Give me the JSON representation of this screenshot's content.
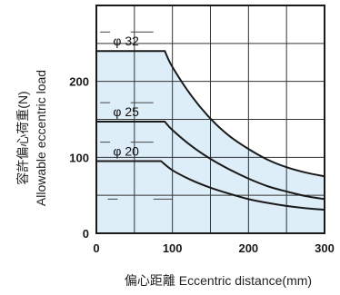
{
  "chart_data": {
    "type": "line",
    "xlabel": "偏心距離 Eccentric distance(mm)",
    "ylabel_jp": "容許偏心荷重(N)",
    "ylabel_en": "Allowable eccentric load",
    "xlim": [
      0,
      300
    ],
    "ylim": [
      0,
      300
    ],
    "x_ticks": [
      0,
      100,
      200,
      300
    ],
    "y_ticks": [
      0,
      100,
      200
    ],
    "grid": true,
    "colors": {
      "fill": "#ddeef9",
      "line": "#1a1a1a",
      "grid": "#333333",
      "dash": "#444444"
    },
    "series": [
      {
        "name": "φ 32",
        "x": [
          0,
          90,
          100,
          125,
          150,
          175,
          200,
          225,
          250,
          275,
          300
        ],
        "values": [
          240,
          240,
          219,
          181,
          151,
          128,
          111,
          97,
          87,
          80,
          75
        ]
      },
      {
        "name": "φ 25",
        "x": [
          0,
          90,
          100,
          125,
          150,
          175,
          200,
          225,
          250,
          275,
          300
        ],
        "values": [
          147,
          147,
          136,
          115,
          98,
          84,
          72,
          62,
          55,
          49,
          45
        ]
      },
      {
        "name": "φ 20",
        "x": [
          0,
          85,
          100,
          125,
          150,
          175,
          200,
          225,
          250,
          275,
          300
        ],
        "values": [
          95,
          95,
          83,
          70,
          60,
          52,
          45,
          40,
          36,
          33,
          31
        ]
      }
    ]
  }
}
